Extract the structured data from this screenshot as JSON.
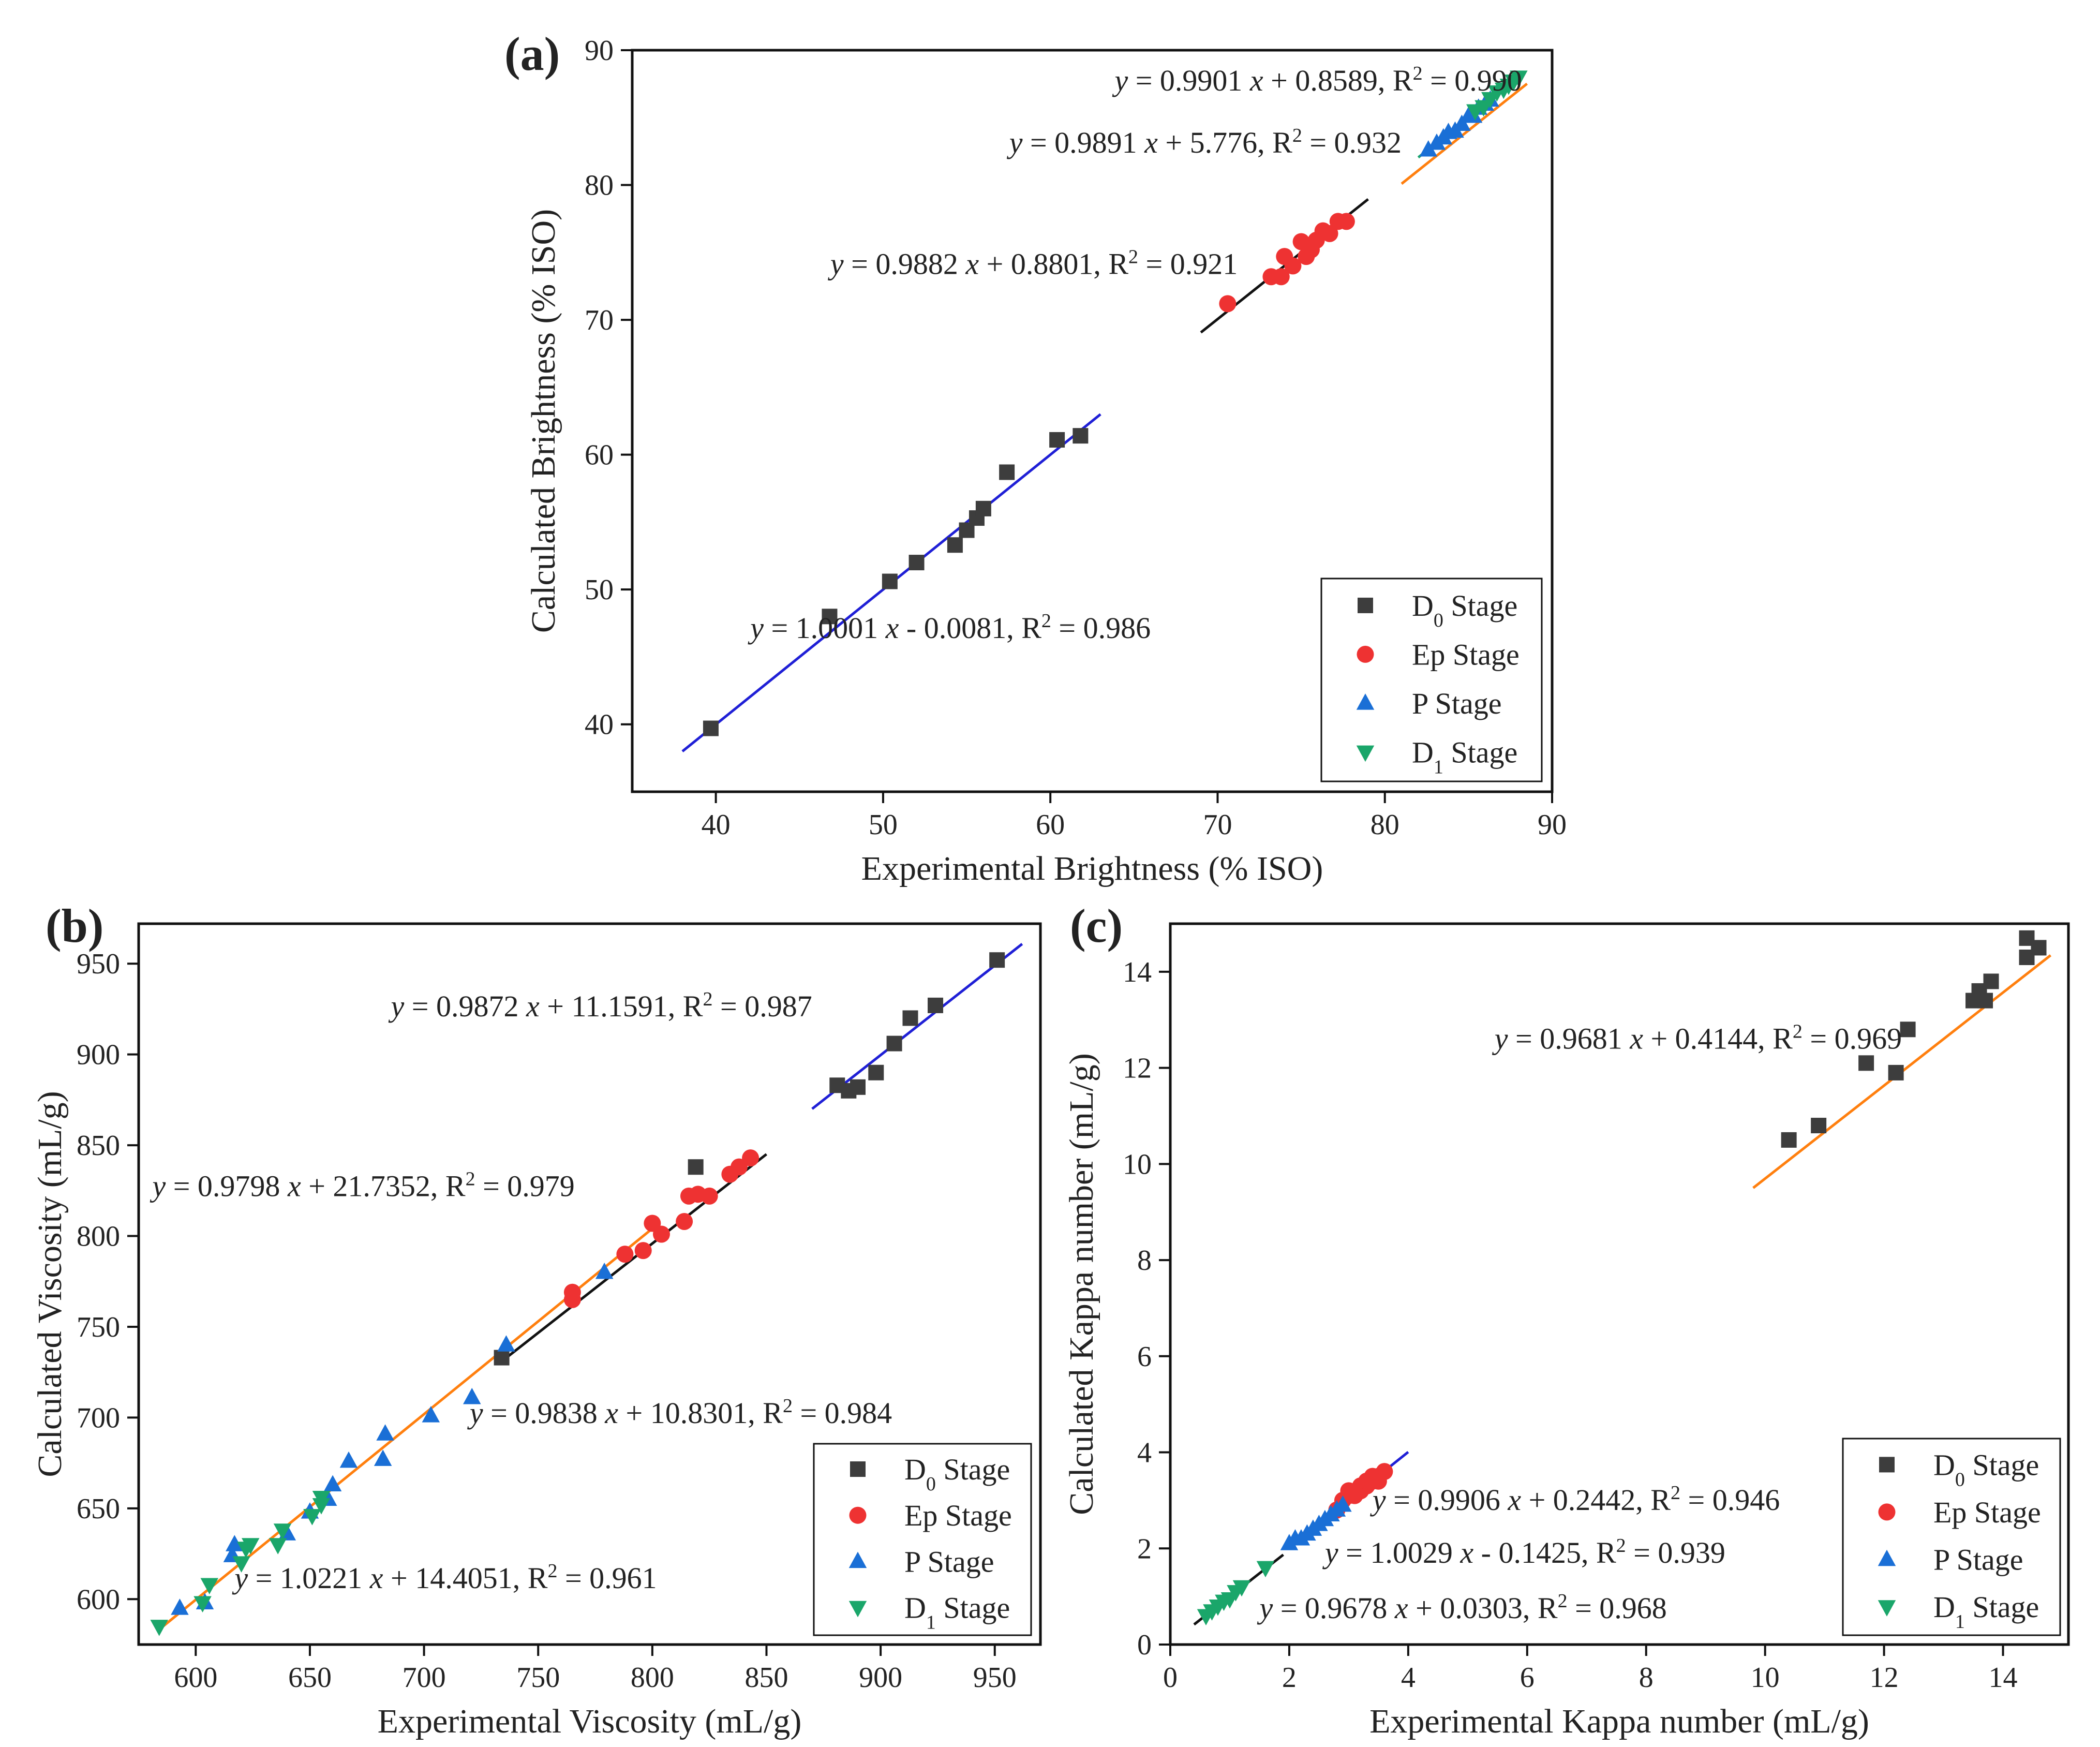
{
  "markers": {
    "D0 Stage": {
      "shape": "square",
      "color": "#3d3d3d"
    },
    "Ep Stage": {
      "shape": "circle",
      "color": "#ee3232"
    },
    "P Stage": {
      "shape": "triangle-up",
      "color": "#1a6fd6"
    },
    "D1 Stage": {
      "shape": "triangle-down",
      "color": "#1aa66a"
    }
  },
  "chart_data": [
    {
      "panel": "a",
      "type": "scatter",
      "panel_label": "(a)",
      "xlabel": "Experimental Brightness (% ISO)",
      "ylabel": "Calculated Brightness (% ISO)",
      "xlim": [
        35,
        90
      ],
      "ylim": [
        35,
        90
      ],
      "xticks": [
        40,
        50,
        60,
        70,
        80,
        90
      ],
      "yticks": [
        40,
        50,
        60,
        70,
        80,
        90
      ],
      "legend_position": "bottom-right",
      "legend": [
        {
          "label": "D",
          "sub": "0",
          "rest": " Stage",
          "series": "D0 Stage"
        },
        {
          "label": "Ep Stage",
          "sub": "",
          "rest": "",
          "series": "Ep Stage"
        },
        {
          "label": "P Stage",
          "sub": "",
          "rest": "",
          "series": "P Stage"
        },
        {
          "label": "D",
          "sub": "1",
          "rest": " Stage",
          "series": "D1 Stage"
        }
      ],
      "series": [
        {
          "name": "D0 Stage",
          "points": [
            [
              39.7,
              39.7
            ],
            [
              46.8,
              48.0
            ],
            [
              50.4,
              50.6
            ],
            [
              52.0,
              52.0
            ],
            [
              54.3,
              53.3
            ],
            [
              55.0,
              54.4
            ],
            [
              55.6,
              55.3
            ],
            [
              56.0,
              56.0
            ],
            [
              57.4,
              58.7
            ],
            [
              60.4,
              61.1
            ],
            [
              61.8,
              61.4
            ]
          ]
        },
        {
          "name": "Ep Stage",
          "points": [
            [
              70.6,
              71.2
            ],
            [
              73.2,
              73.2
            ],
            [
              73.8,
              73.2
            ],
            [
              74.0,
              74.7
            ],
            [
              74.5,
              74.0
            ],
            [
              75.0,
              75.8
            ],
            [
              75.3,
              74.7
            ],
            [
              75.6,
              75.2
            ],
            [
              75.9,
              75.9
            ],
            [
              76.3,
              76.6
            ],
            [
              76.7,
              76.4
            ],
            [
              77.2,
              77.3
            ],
            [
              77.7,
              77.3
            ]
          ]
        },
        {
          "name": "P Stage",
          "points": [
            [
              82.6,
              82.6
            ],
            [
              83.1,
              83.1
            ],
            [
              83.5,
              83.5
            ],
            [
              83.8,
              83.9
            ],
            [
              84.2,
              84.0
            ],
            [
              84.6,
              84.5
            ],
            [
              85.0,
              85.1
            ],
            [
              85.3,
              85.1
            ],
            [
              85.6,
              85.7
            ],
            [
              86.0,
              86.0
            ],
            [
              86.3,
              86.3
            ]
          ]
        },
        {
          "name": "D1 Stage",
          "points": [
            [
              85.4,
              85.5
            ],
            [
              85.9,
              85.8
            ],
            [
              86.3,
              86.4
            ],
            [
              86.7,
              86.9
            ],
            [
              87.1,
              87.1
            ],
            [
              87.4,
              87.4
            ],
            [
              87.7,
              87.7
            ],
            [
              88.0,
              88.0
            ]
          ]
        }
      ],
      "fits": [
        {
          "x": [
            38,
            63
          ],
          "slope": 1.0001,
          "intercept": -0.0081,
          "color": "#1f1fd6"
        },
        {
          "x": [
            69,
            79
          ],
          "slope": 0.9882,
          "intercept": 0.8801,
          "color": "#111111"
        },
        {
          "x": [
            81,
            88.5
          ],
          "slope": 0.9891,
          "intercept": 5.776,
          "color": "#ff7f0e",
          "y_offset": -5.8
        },
        {
          "x": [
            82,
            88.3
          ],
          "slope": 0.9901,
          "intercept": 0.8589,
          "color": "#1aa66a"
        }
      ],
      "equations": [
        {
          "pre": "y",
          "mid": " = 0.9901 ",
          "x": "x",
          "post": " + 0.8589, R",
          "sup": "2",
          "end": " = 0.990",
          "at": [
            88.2,
            87.0
          ],
          "anchor": "end"
        },
        {
          "pre": "y",
          "mid": " = 0.9891 ",
          "x": "x",
          "post": " + 5.776, R",
          "sup": "2",
          "end": " = 0.932",
          "at": [
            81.0,
            82.4
          ],
          "anchor": "end"
        },
        {
          "pre": "y",
          "mid": " = 0.9882 ",
          "x": "x",
          "post": " + 0.8801, R",
          "sup": "2",
          "end": " = 0.921",
          "at": [
            71.2,
            73.4
          ],
          "anchor": "end"
        },
        {
          "pre": "y",
          "mid": " = 1.0001 ",
          "x": "x",
          "post": " - 0.0081, R",
          "sup": "2",
          "end": " = 0.986",
          "at": [
            66.0,
            46.4
          ],
          "anchor": "end"
        }
      ]
    },
    {
      "panel": "b",
      "type": "scatter",
      "panel_label": "(b)",
      "xlabel": "Experimental Viscosity (mL/g)",
      "ylabel": "Calculated Viscosity (mL/g)",
      "xlim": [
        575,
        970
      ],
      "ylim": [
        575,
        972
      ],
      "xticks": [
        600,
        650,
        700,
        750,
        800,
        850,
        900,
        950
      ],
      "yticks": [
        600,
        650,
        700,
        750,
        800,
        850,
        900,
        950
      ],
      "legend_position": "bottom-right",
      "legend": [
        {
          "label": "D",
          "sub": "0",
          "rest": " Stage",
          "series": "D0 Stage"
        },
        {
          "label": "Ep Stage",
          "sub": "",
          "rest": "",
          "series": "Ep Stage"
        },
        {
          "label": "P Stage",
          "sub": "",
          "rest": "",
          "series": "P Stage"
        },
        {
          "label": "D",
          "sub": "1",
          "rest": " Stage",
          "series": "D1 Stage"
        }
      ],
      "series": [
        {
          "name": "D0 Stage",
          "points": [
            [
              734,
              733
            ],
            [
              819,
              838
            ],
            [
              881,
              883
            ],
            [
              886,
              880
            ],
            [
              890,
              882
            ],
            [
              898,
              890
            ],
            [
              906,
              906
            ],
            [
              913,
              920
            ],
            [
              924,
              927
            ],
            [
              951,
              952
            ]
          ]
        },
        {
          "name": "Ep Stage",
          "points": [
            [
              765,
              765
            ],
            [
              765,
              769
            ],
            [
              788,
              790
            ],
            [
              796,
              792
            ],
            [
              800,
              807
            ],
            [
              804,
              801
            ],
            [
              814,
              808
            ],
            [
              816,
              822
            ],
            [
              820,
              823
            ],
            [
              825,
              822
            ],
            [
              834,
              834
            ],
            [
              838,
              838
            ],
            [
              843,
              843
            ]
          ]
        },
        {
          "name": "P Stage",
          "points": [
            [
              593,
              595
            ],
            [
              604,
              598
            ],
            [
              616,
              624
            ],
            [
              617,
              630
            ],
            [
              640,
              636
            ],
            [
              650,
              648
            ],
            [
              658,
              655
            ],
            [
              660,
              663
            ],
            [
              667,
              676
            ],
            [
              682,
              677
            ],
            [
              683,
              691
            ],
            [
              703,
              701
            ],
            [
              721,
              711
            ],
            [
              736,
              740
            ],
            [
              779,
              780
            ]
          ]
        },
        {
          "name": "D1 Stage",
          "points": [
            [
              584,
              585
            ],
            [
              603,
              598
            ],
            [
              606,
              608
            ],
            [
              620,
              620
            ],
            [
              622,
              628
            ],
            [
              624,
              630
            ],
            [
              636,
              630
            ],
            [
              638,
              638
            ],
            [
              651,
              646
            ],
            [
              655,
              652
            ],
            [
              655,
              656
            ]
          ]
        }
      ],
      "fits": [
        {
          "x": [
            585,
            800
          ],
          "slope": 1.0221,
          "intercept": 14.4051,
          "color": "#ff7f0e",
          "y_offset": -28
        },
        {
          "x": [
            735,
            850
          ],
          "slope": 0.9838,
          "intercept": 10.8301,
          "color": "#111111",
          "y_offset": -2
        },
        {
          "x": [
            870,
            962
          ],
          "slope": 0.9872,
          "intercept": 11.1591,
          "color": "#1f1fd6"
        }
      ],
      "equations": [
        {
          "pre": "y",
          "mid": " = 0.9872 ",
          "x": "x",
          "post": " + 11.1591, R",
          "sup": "2",
          "end": " = 0.987",
          "at": [
            870,
            921
          ],
          "anchor": "end"
        },
        {
          "pre": "y",
          "mid": " = 0.9798 ",
          "x": "x",
          "post": " + 21.7352, R",
          "sup": "2",
          "end": " = 0.979",
          "at": [
            581,
            822
          ],
          "anchor": "start"
        },
        {
          "pre": "y",
          "mid": " = 0.9838 ",
          "x": "x",
          "post": " + 10.8301, R",
          "sup": "2",
          "end": " = 0.984",
          "at": [
            720,
            697
          ],
          "anchor": "start"
        },
        {
          "pre": "y",
          "mid": " = 1.0221 ",
          "x": "x",
          "post": " + 14.4051, R",
          "sup": "2",
          "end": " = 0.961",
          "at": [
            617,
            606
          ],
          "anchor": "start"
        }
      ]
    },
    {
      "panel": "c",
      "type": "scatter",
      "panel_label": "(c)",
      "xlabel": "Experimental Kappa number (mL/g)",
      "ylabel": "Calculated Kappa number (mL/g)",
      "xlim": [
        0,
        15.1
      ],
      "ylim": [
        0,
        15.0
      ],
      "xticks": [
        0,
        2,
        4,
        6,
        8,
        10,
        12,
        14
      ],
      "yticks": [
        0,
        2,
        4,
        6,
        8,
        10,
        12,
        14
      ],
      "legend_position": "bottom-right",
      "legend": [
        {
          "label": "D",
          "sub": "0",
          "rest": " Stage",
          "series": "D0 Stage"
        },
        {
          "label": "Ep Stage",
          "sub": "",
          "rest": "",
          "series": "Ep Stage"
        },
        {
          "label": "P Stage",
          "sub": "",
          "rest": "",
          "series": "P Stage"
        },
        {
          "label": "D",
          "sub": "1",
          "rest": " Stage",
          "series": "D1 Stage"
        }
      ],
      "series": [
        {
          "name": "D0 Stage",
          "points": [
            [
              10.4,
              10.5
            ],
            [
              10.9,
              10.8
            ],
            [
              11.7,
              12.1
            ],
            [
              12.2,
              11.9
            ],
            [
              12.4,
              12.8
            ],
            [
              13.5,
              13.4
            ],
            [
              13.6,
              13.6
            ],
            [
              13.7,
              13.4
            ],
            [
              13.8,
              13.8
            ],
            [
              14.4,
              14.3
            ],
            [
              14.4,
              14.7
            ],
            [
              14.6,
              14.5
            ]
          ]
        },
        {
          "name": "Ep Stage",
          "points": [
            [
              2.8,
              2.8
            ],
            [
              2.9,
              3.0
            ],
            [
              3.0,
              3.1
            ],
            [
              3.0,
              3.2
            ],
            [
              3.1,
              3.1
            ],
            [
              3.2,
              3.2
            ],
            [
              3.2,
              3.3
            ],
            [
              3.3,
              3.3
            ],
            [
              3.3,
              3.4
            ],
            [
              3.4,
              3.4
            ],
            [
              3.4,
              3.5
            ],
            [
              3.5,
              3.4
            ],
            [
              3.5,
              3.5
            ],
            [
              3.6,
              3.6
            ]
          ]
        },
        {
          "name": "P Stage",
          "points": [
            [
              2.0,
              2.1
            ],
            [
              2.1,
              2.2
            ],
            [
              2.2,
              2.2
            ],
            [
              2.3,
              2.3
            ],
            [
              2.4,
              2.4
            ],
            [
              2.5,
              2.5
            ],
            [
              2.6,
              2.6
            ],
            [
              2.7,
              2.7
            ],
            [
              2.8,
              2.8
            ],
            [
              2.9,
              2.9
            ]
          ]
        },
        {
          "name": "D1 Stage",
          "points": [
            [
              0.6,
              0.6
            ],
            [
              0.7,
              0.7
            ],
            [
              0.8,
              0.8
            ],
            [
              0.9,
              0.9
            ],
            [
              1.0,
              0.95
            ],
            [
              1.1,
              1.1
            ],
            [
              1.2,
              1.2
            ],
            [
              1.6,
              1.6
            ]
          ]
        }
      ],
      "fits": [
        {
          "x": [
            9.8,
            14.8
          ],
          "slope": 0.9681,
          "intercept": 0.4144,
          "color": "#ff7f0e",
          "y_offset": -0.4
        },
        {
          "x": [
            2.0,
            4.0
          ],
          "slope": 0.9906,
          "intercept": 0.2442,
          "color": "#1f1fd6",
          "y_offset": -0.2
        },
        {
          "x": [
            2.0,
            3.6
          ],
          "slope": 1.0029,
          "intercept": -0.1425,
          "color": "#d63fd6",
          "y_offset": 0.15
        },
        {
          "x": [
            0.4,
            1.9
          ],
          "slope": 0.9678,
          "intercept": 0.0303,
          "color": "#111111"
        }
      ],
      "equations": [
        {
          "pre": "y",
          "mid": " = 0.9681 ",
          "x": "x",
          "post": " + 0.4144, R",
          "sup": "2",
          "end": " = 0.969",
          "at": [
            12.3,
            12.4
          ],
          "anchor": "end"
        },
        {
          "pre": "y",
          "mid": " = 0.9906 ",
          "x": "x",
          "post": " + 0.2442, R",
          "sup": "2",
          "end": " = 0.946",
          "at": [
            3.4,
            2.8
          ],
          "anchor": "start"
        },
        {
          "pre": "y",
          "mid": " = 1.0029 ",
          "x": "x",
          "post": " - 0.1425, R",
          "sup": "2",
          "end": " = 0.939",
          "at": [
            2.6,
            1.7
          ],
          "anchor": "start"
        },
        {
          "pre": "y",
          "mid": " = 0.9678 ",
          "x": "x",
          "post": " + 0.0303, R",
          "sup": "2",
          "end": " = 0.968",
          "at": [
            1.5,
            0.55
          ],
          "anchor": "start"
        }
      ]
    }
  ]
}
